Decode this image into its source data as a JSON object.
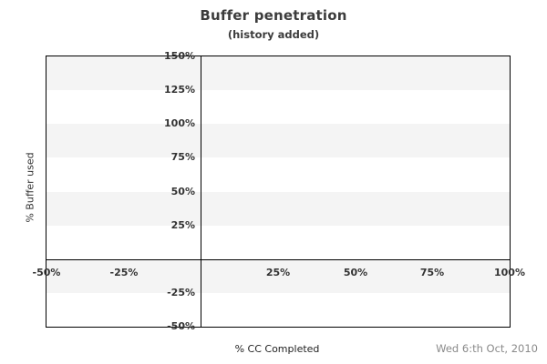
{
  "footer": {
    "date_label": "Wed 6:th Oct, 2010"
  },
  "colors": {
    "band_fill": "#f4f4f4",
    "axis_line": "#000000",
    "tick_text": "#333333",
    "title_text": "#3c3c3c",
    "date_text": "#8a8a8a",
    "background": "#ffffff"
  },
  "chart_data": {
    "type": "scatter",
    "title": "Buffer penetration",
    "subtitle": "(history added)",
    "xlabel": "% CC Completed",
    "ylabel": "% Buffer used",
    "xlim": [
      -50,
      100
    ],
    "ylim": [
      -50,
      150
    ],
    "x_ticks": [
      {
        "value": -50,
        "label": "-50%"
      },
      {
        "value": -25,
        "label": "-25%"
      },
      {
        "value": 25,
        "label": "25%"
      },
      {
        "value": 50,
        "label": "50%"
      },
      {
        "value": 75,
        "label": "75%"
      },
      {
        "value": 100,
        "label": "100%"
      }
    ],
    "y_ticks": [
      {
        "value": 150,
        "label": "150%"
      },
      {
        "value": 125,
        "label": "125%"
      },
      {
        "value": 100,
        "label": "100%"
      },
      {
        "value": 75,
        "label": "75%"
      },
      {
        "value": 50,
        "label": "50%"
      },
      {
        "value": 25,
        "label": "25%"
      },
      {
        "value": -25,
        "label": "-25%"
      },
      {
        "value": -50,
        "label": "-50%"
      }
    ],
    "band_step": 25,
    "band_pattern": "alternating horizontal bands, topmost band shaded",
    "zero_lines": true,
    "grid": false,
    "legend": "none",
    "series": []
  }
}
